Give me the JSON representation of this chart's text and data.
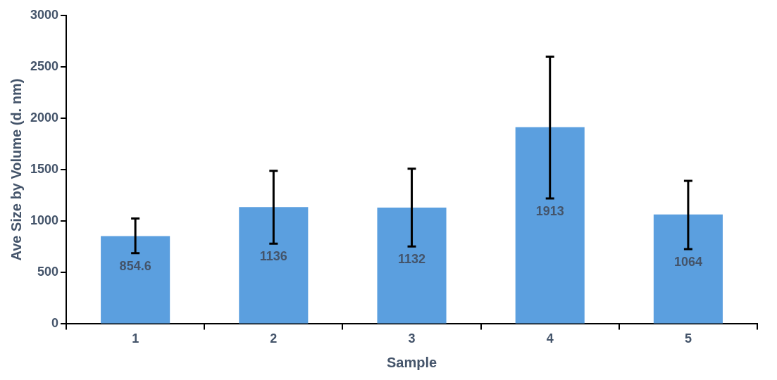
{
  "chart_data": {
    "type": "bar",
    "xlabel": "Sample",
    "ylabel": "Ave Size by Volume (d. nm)",
    "categories": [
      "1",
      "2",
      "3",
      "4",
      "5"
    ],
    "values": [
      854.6,
      1136,
      1132,
      1913,
      1064
    ],
    "color": "#5b9fdf",
    "errors": [
      [
        689,
        1025
      ],
      [
        781,
        1489
      ],
      [
        754,
        1509
      ],
      [
        1220,
        2598
      ],
      [
        728,
        1391
      ]
    ],
    "data_labels": true,
    "ylim": [
      0,
      3000
    ],
    "yticks": [
      0,
      500,
      1000,
      1500,
      2000,
      2500,
      3000
    ],
    "grid": false,
    "legend": false
  }
}
